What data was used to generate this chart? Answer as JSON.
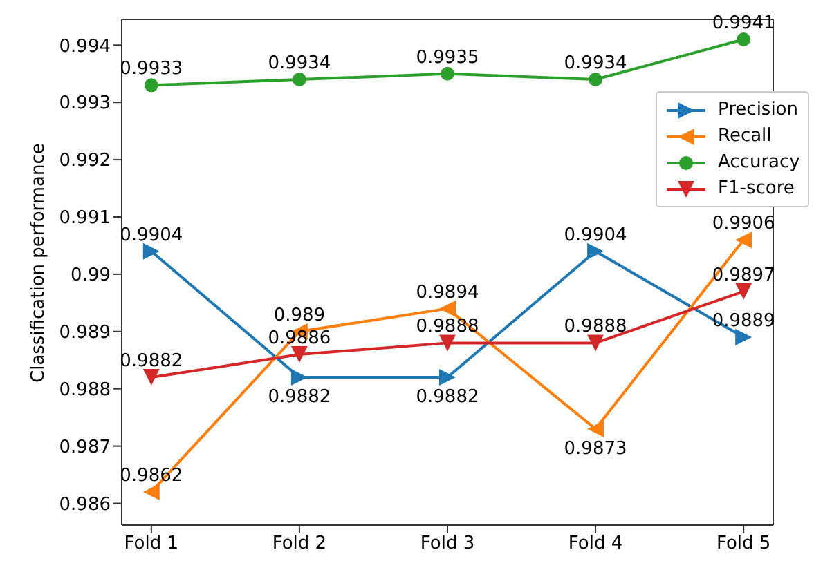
{
  "chart_data": {
    "type": "line",
    "ylabel": "Classification performance",
    "categories": [
      "Fold 1",
      "Fold 2",
      "Fold 3",
      "Fold 4",
      "Fold 5"
    ],
    "series": [
      {
        "name": "Precision",
        "color": "#1f77b4",
        "marker": "triangle-right",
        "values": [
          0.9904,
          0.9882,
          0.9882,
          0.9904,
          0.9889
        ]
      },
      {
        "name": "Recall",
        "color": "#ff7f0e",
        "marker": "triangle-left",
        "values": [
          0.9862,
          0.989,
          0.9894,
          0.9873,
          0.9906
        ]
      },
      {
        "name": "Accuracy",
        "color": "#2ca02c",
        "marker": "circle",
        "values": [
          0.9933,
          0.9934,
          0.9935,
          0.9934,
          0.9941
        ]
      },
      {
        "name": "F1-score",
        "color": "#d62728",
        "marker": "triangle-down",
        "values": [
          0.9882,
          0.9886,
          0.9888,
          0.9888,
          0.9897
        ]
      }
    ],
    "ylim": [
      0.98562,
      0.99445
    ],
    "yticks": [
      0.986,
      0.987,
      0.988,
      0.989,
      0.99,
      0.991,
      0.992,
      0.993,
      0.994
    ],
    "grid": false,
    "legend": "top right",
    "data_labels": true
  }
}
